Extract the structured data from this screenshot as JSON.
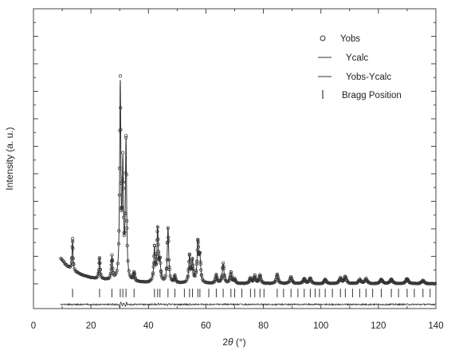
{
  "chart_data": {
    "type": "scatter",
    "title": "",
    "xlabel_prefix": "2",
    "xlabel_symbol": "θ",
    "xlabel_suffix": " (°)",
    "ylabel": "Intensity (a. u.)",
    "xlim": [
      0,
      140
    ],
    "xticks": [
      "0",
      "20",
      "40",
      "60",
      "80",
      "100",
      "120",
      "140"
    ],
    "ylim": [
      -0.9,
      10.0
    ],
    "show_y_tick_labels": false,
    "grid": false,
    "legend_position": "top-right",
    "legend": [
      {
        "marker": "circle",
        "label": "Yobs"
      },
      {
        "marker": "line",
        "label": "Ycalc"
      },
      {
        "marker": "line",
        "label": "Yobs-Ycalc"
      },
      {
        "marker": "bar",
        "label": "Bragg Position"
      }
    ],
    "background": {
      "x": [
        9.5,
        10,
        11,
        12,
        13,
        14,
        16,
        18,
        20,
        23,
        26,
        30,
        35,
        40,
        50,
        60,
        80,
        100,
        120,
        140
      ],
      "y": [
        0.92,
        0.85,
        0.72,
        0.62,
        0.53,
        0.46,
        0.36,
        0.28,
        0.22,
        0.16,
        0.12,
        0.08,
        0.05,
        0.03,
        0.01,
        0.0,
        0.0,
        0.0,
        0.0,
        0.0
      ]
    },
    "peaks": [
      {
        "x": 13.6,
        "y": 1.12
      },
      {
        "x": 23.0,
        "y": 0.78
      },
      {
        "x": 27.3,
        "y": 0.85
      },
      {
        "x": 30.2,
        "y": 7.0
      },
      {
        "x": 31.1,
        "y": 3.9
      },
      {
        "x": 32.2,
        "y": 4.95
      },
      {
        "x": 35.0,
        "y": 0.3
      },
      {
        "x": 42.1,
        "y": 1.2
      },
      {
        "x": 43.2,
        "y": 1.9
      },
      {
        "x": 44.0,
        "y": 0.7
      },
      {
        "x": 46.8,
        "y": 2.0
      },
      {
        "x": 49.2,
        "y": 0.25
      },
      {
        "x": 54.3,
        "y": 0.95
      },
      {
        "x": 55.3,
        "y": 0.75
      },
      {
        "x": 57.2,
        "y": 1.45
      },
      {
        "x": 57.9,
        "y": 0.85
      },
      {
        "x": 63.6,
        "y": 0.3
      },
      {
        "x": 66.0,
        "y": 0.72
      },
      {
        "x": 68.7,
        "y": 0.4
      },
      {
        "x": 70.0,
        "y": 0.15
      },
      {
        "x": 75.5,
        "y": 0.2
      },
      {
        "x": 77.0,
        "y": 0.28
      },
      {
        "x": 78.8,
        "y": 0.3
      },
      {
        "x": 84.8,
        "y": 0.33
      },
      {
        "x": 89.6,
        "y": 0.25
      },
      {
        "x": 94.2,
        "y": 0.18
      },
      {
        "x": 96.3,
        "y": 0.2
      },
      {
        "x": 101.5,
        "y": 0.15
      },
      {
        "x": 106.8,
        "y": 0.2
      },
      {
        "x": 108.5,
        "y": 0.25
      },
      {
        "x": 113.5,
        "y": 0.15
      },
      {
        "x": 115.7,
        "y": 0.18
      },
      {
        "x": 121.0,
        "y": 0.15
      },
      {
        "x": 124.5,
        "y": 0.16
      },
      {
        "x": 130.0,
        "y": 0.18
      },
      {
        "x": 135.5,
        "y": 0.12
      }
    ],
    "bragg_positions": [
      13.6,
      23.0,
      27.3,
      30.2,
      31.1,
      32.2,
      35.0,
      42.1,
      43.2,
      44.0,
      46.8,
      49.2,
      52.5,
      54.3,
      55.3,
      57.2,
      57.9,
      61.0,
      63.6,
      66.0,
      68.7,
      70.0,
      72.5,
      75.5,
      77.0,
      78.8,
      80.2,
      84.8,
      87.0,
      89.6,
      92.0,
      94.2,
      96.3,
      98.0,
      99.5,
      101.5,
      104.0,
      106.8,
      108.5,
      111.0,
      113.5,
      115.7,
      118.0,
      121.0,
      124.5,
      127.0,
      130.0,
      132.5,
      135.5,
      138.0
    ],
    "difference_offset": -0.75
  }
}
